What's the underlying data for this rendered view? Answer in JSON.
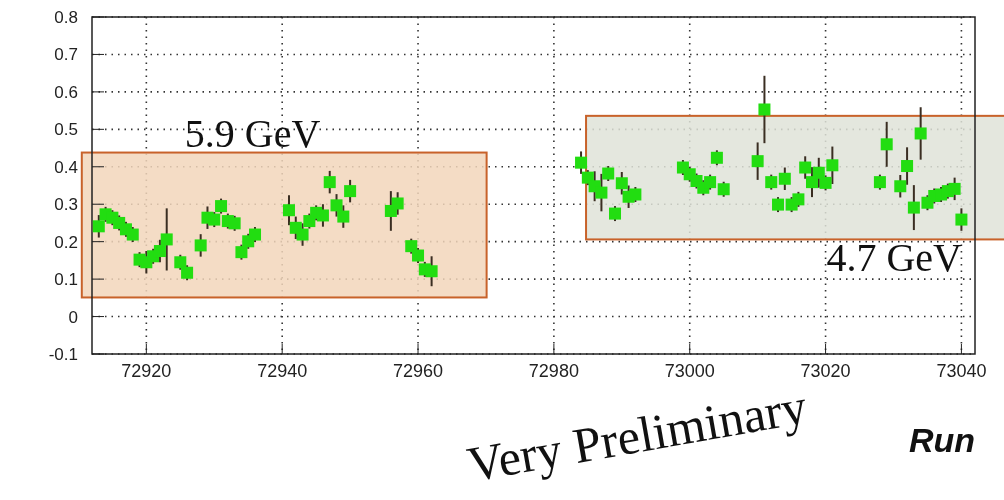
{
  "chart_data": {
    "type": "scatter",
    "xlabel": "Run",
    "marker": "square",
    "grid": true,
    "xlim": [
      72912,
      73042
    ],
    "xticks": [
      72920,
      72940,
      72960,
      72980,
      73000,
      73020,
      73040
    ],
    "ylim": [
      -0.1,
      0.8
    ],
    "yticks": [
      -0.1,
      0,
      0.1,
      0.2,
      0.3,
      0.4,
      0.5,
      0.6,
      0.7,
      0.8
    ],
    "series": [
      {
        "color": "#22dd11",
        "x": [
          72913,
          72914,
          72915,
          72916,
          72917,
          72918,
          72919,
          72920,
          72921,
          72922,
          72923,
          72925,
          72926,
          72928,
          72929,
          72930,
          72931,
          72932,
          72933,
          72934,
          72935,
          72936,
          72941,
          72942,
          72943,
          72944,
          72945,
          72946,
          72947,
          72948,
          72949,
          72950,
          72956,
          72957,
          72959,
          72960,
          72961,
          72962
        ],
        "values": [
          0.241,
          0.273,
          0.264,
          0.25,
          0.233,
          0.219,
          0.152,
          0.145,
          0.161,
          0.175,
          0.206,
          0.145,
          0.117,
          0.19,
          0.264,
          0.259,
          0.295,
          0.255,
          0.249,
          0.172,
          0.201,
          0.219,
          0.284,
          0.237,
          0.219,
          0.255,
          0.277,
          0.27,
          0.359,
          0.297,
          0.267,
          0.335,
          0.282,
          0.302,
          0.188,
          0.163,
          0.126,
          0.121
        ],
        "errors": [
          0.03,
          0.02,
          0.02,
          0.02,
          0.02,
          0.02,
          0.02,
          0.03,
          0.02,
          0.03,
          0.083,
          0.02,
          0.02,
          0.03,
          0.03,
          0.02,
          0.02,
          0.02,
          0.02,
          0.02,
          0.02,
          0.02,
          0.04,
          0.03,
          0.03,
          0.02,
          0.02,
          0.03,
          0.03,
          0.03,
          0.03,
          0.03,
          0.053,
          0.03,
          0.02,
          0.02,
          0.02,
          0.04
        ]
      },
      {
        "color": "#22dd11",
        "x": [
          72984,
          72985,
          72986,
          72987,
          72988,
          72989,
          72990,
          72991,
          72992,
          72999,
          73000,
          73001,
          73002,
          73003,
          73004,
          73005,
          73010,
          73011,
          73012,
          73013,
          73014,
          73015,
          73016,
          73017,
          73018,
          73019,
          73020,
          73021,
          73028,
          73029,
          73031,
          73032,
          73033,
          73034,
          73035,
          73036,
          73037,
          73038,
          73039,
          73040
        ],
        "values": [
          0.411,
          0.371,
          0.348,
          0.331,
          0.382,
          0.275,
          0.356,
          0.32,
          0.326,
          0.398,
          0.38,
          0.362,
          0.344,
          0.359,
          0.424,
          0.34,
          0.415,
          0.553,
          0.359,
          0.299,
          0.368,
          0.299,
          0.313,
          0.398,
          0.359,
          0.384,
          0.357,
          0.404,
          0.359,
          0.46,
          0.348,
          0.402,
          0.291,
          0.489,
          0.304,
          0.322,
          0.326,
          0.335,
          0.341,
          0.259
        ],
        "errors": [
          0.03,
          0.02,
          0.04,
          0.05,
          0.02,
          0.02,
          0.03,
          0.03,
          0.02,
          0.02,
          0.02,
          0.02,
          0.02,
          0.02,
          0.02,
          0.02,
          0.05,
          0.09,
          0.02,
          0.02,
          0.03,
          0.02,
          0.02,
          0.03,
          0.04,
          0.04,
          0.02,
          0.05,
          0.02,
          0.06,
          0.03,
          0.05,
          0.06,
          0.07,
          0.02,
          0.02,
          0.02,
          0.02,
          0.03,
          0.03
        ]
      }
    ],
    "bands": [
      {
        "axis": "y",
        "from": 0.051,
        "to": 0.438,
        "label": "5.9 GeV",
        "color": "#f2d6bb"
      },
      {
        "axis": "y",
        "from": 0.206,
        "to": 0.536,
        "label": "4.7 GeV",
        "color": "#dfe3d8"
      }
    ],
    "annotations": [
      "Very Preliminary"
    ]
  }
}
